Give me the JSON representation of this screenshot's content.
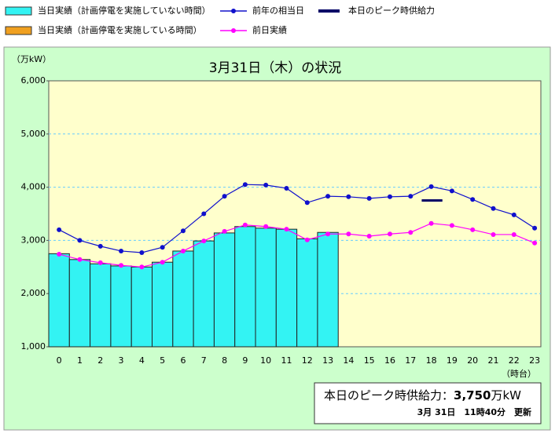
{
  "chart_data": {
    "type": "bar",
    "title": "3月31日（木）の状況",
    "y_label": "（万kW）",
    "x_label": "（時台）",
    "categories": [
      0,
      1,
      2,
      3,
      4,
      5,
      6,
      7,
      8,
      9,
      10,
      11,
      12,
      13,
      14,
      15,
      16,
      17,
      18,
      19,
      20,
      21,
      22,
      23
    ],
    "series": [
      {
        "name": "当日実績（計画停電を実施していない時間）",
        "type": "bar",
        "color": "#33f3f3",
        "values": [
          2750,
          2640,
          2560,
          2520,
          2500,
          2590,
          2800,
          2990,
          3140,
          3260,
          3230,
          3210,
          3030,
          3150,
          null,
          null,
          null,
          null,
          null,
          null,
          null,
          null,
          null,
          null
        ]
      },
      {
        "name": "当日実績（計画停電を実施している時間）",
        "type": "bar",
        "color": "#f0a020",
        "values": [
          null,
          null,
          null,
          null,
          null,
          null,
          null,
          null,
          null,
          null,
          null,
          null,
          null,
          null,
          null,
          null,
          null,
          null,
          null,
          null,
          null,
          null,
          null,
          null
        ]
      },
      {
        "name": "前年の相当日",
        "type": "line",
        "color": "#1010cc",
        "values": [
          3200,
          3000,
          2890,
          2800,
          2770,
          2870,
          3180,
          3500,
          3830,
          4050,
          4040,
          3980,
          3710,
          3830,
          3820,
          3790,
          3820,
          3830,
          4010,
          3930,
          3770,
          3600,
          3480,
          3230
        ]
      },
      {
        "name": "前日実績",
        "type": "line",
        "color": "#ff00ff",
        "values": [
          2740,
          2640,
          2580,
          2530,
          2500,
          2590,
          2800,
          2990,
          3170,
          3290,
          3260,
          3210,
          3010,
          3120,
          3120,
          3080,
          3120,
          3150,
          3320,
          3280,
          3200,
          3110,
          3110,
          2950
        ]
      }
    ],
    "peak": {
      "name": "本日のピーク時供給力",
      "caption": "本日のピーク時供給力：",
      "color": "#000066",
      "x": 18,
      "value": 3750,
      "label": "3,750",
      "unit": "万kW"
    },
    "updated": "3月 31日　11時40分　更新",
    "ylim": [
      1000,
      6000
    ],
    "yticks": [
      {
        "value": 1000,
        "label": "1,000"
      },
      {
        "value": 2000,
        "label": "2,000"
      },
      {
        "value": 3000,
        "label": "3,000"
      },
      {
        "value": 4000,
        "label": "4,000"
      },
      {
        "value": 5000,
        "label": "5,000"
      },
      {
        "value": 6000,
        "label": "6,000"
      }
    ],
    "grid": true
  }
}
